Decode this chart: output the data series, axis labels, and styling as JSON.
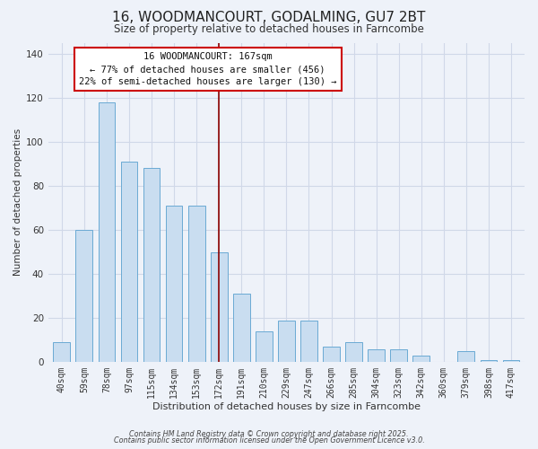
{
  "title": "16, WOODMANCOURT, GODALMING, GU7 2BT",
  "subtitle": "Size of property relative to detached houses in Farncombe",
  "xlabel": "Distribution of detached houses by size in Farncombe",
  "ylabel": "Number of detached properties",
  "bar_labels": [
    "40sqm",
    "59sqm",
    "78sqm",
    "97sqm",
    "115sqm",
    "134sqm",
    "153sqm",
    "172sqm",
    "191sqm",
    "210sqm",
    "229sqm",
    "247sqm",
    "266sqm",
    "285sqm",
    "304sqm",
    "323sqm",
    "342sqm",
    "360sqm",
    "379sqm",
    "398sqm",
    "417sqm"
  ],
  "bar_values": [
    9,
    60,
    118,
    91,
    88,
    71,
    71,
    50,
    31,
    14,
    19,
    19,
    7,
    9,
    6,
    6,
    3,
    0,
    5,
    1,
    1
  ],
  "bar_color": "#c9ddf0",
  "bar_edge_color": "#6aaad4",
  "vline_x_index": 7,
  "vline_color": "#8b0000",
  "annotation_title": "16 WOODMANCOURT: 167sqm",
  "annotation_line1": "← 77% of detached houses are smaller (456)",
  "annotation_line2": "22% of semi-detached houses are larger (130) →",
  "annotation_box_facecolor": "#ffffff",
  "annotation_box_edgecolor": "#cc0000",
  "ylim": [
    0,
    145
  ],
  "yticks": [
    0,
    20,
    40,
    60,
    80,
    100,
    120,
    140
  ],
  "footer1": "Contains HM Land Registry data © Crown copyright and database right 2025.",
  "footer2": "Contains public sector information licensed under the Open Government Licence v3.0.",
  "background_color": "#eef2f9",
  "grid_color": "#d0d8e8",
  "title_fontsize": 11,
  "subtitle_fontsize": 8.5,
  "xlabel_fontsize": 8,
  "ylabel_fontsize": 7.5,
  "tick_fontsize": 7,
  "annotation_fontsize": 7.5,
  "footer_fontsize": 5.8
}
